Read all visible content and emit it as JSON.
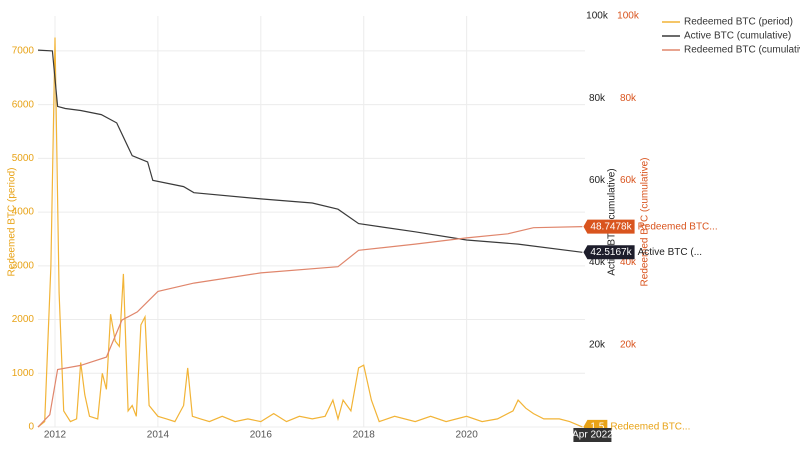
{
  "chart_data": {
    "type": "line",
    "xlim": [
      2011.67,
      2022.3
    ],
    "xticks": [
      2012,
      2014,
      2016,
      2018,
      2020
    ],
    "ylim": [
      0,
      7650
    ],
    "yticks": [
      0,
      1000,
      2000,
      3000,
      4000,
      5000,
      6000,
      7000
    ],
    "y2lim": [
      0,
      100000
    ],
    "y2ticks": [
      {
        "value": 20000,
        "label": "20k"
      },
      {
        "value": 40000,
        "label": "40k"
      },
      {
        "value": 60000,
        "label": "60k"
      },
      {
        "value": 80000,
        "label": "80k"
      },
      {
        "value": 100000,
        "label": "100k"
      }
    ],
    "y3lim": [
      0,
      100000
    ],
    "y3ticks": [
      {
        "value": 20000,
        "label": "20k"
      },
      {
        "value": 40000,
        "label": "40k"
      },
      {
        "value": 60000,
        "label": "60k"
      },
      {
        "value": 80000,
        "label": "80k"
      },
      {
        "value": 100000,
        "label": "100k"
      }
    ],
    "ylabel": "Redeemed BTC (period)",
    "y2label": "Active BTC (cumulative)",
    "y3label": "Redeemed BTC (cumulative)",
    "grid": true,
    "legend": "top-right",
    "series": [
      {
        "name": "Redeemed BTC (period)",
        "color": "#f2b437",
        "axis": "y",
        "x": [
          2011.67,
          2011.8,
          2011.92,
          2012.0,
          2012.08,
          2012.17,
          2012.3,
          2012.42,
          2012.5,
          2012.58,
          2012.67,
          2012.83,
          2012.92,
          2013.0,
          2013.08,
          2013.17,
          2013.25,
          2013.33,
          2013.42,
          2013.5,
          2013.58,
          2013.67,
          2013.75,
          2013.83,
          2014.0,
          2014.17,
          2014.33,
          2014.5,
          2014.58,
          2014.67,
          2014.83,
          2015.0,
          2015.25,
          2015.5,
          2015.75,
          2016.0,
          2016.25,
          2016.5,
          2016.75,
          2017.0,
          2017.25,
          2017.4,
          2017.5,
          2017.6,
          2017.75,
          2017.9,
          2018.0,
          2018.15,
          2018.3,
          2018.6,
          2019.0,
          2019.3,
          2019.6,
          2020.0,
          2020.3,
          2020.6,
          2020.9,
          2021.0,
          2021.15,
          2021.3,
          2021.5,
          2021.8,
          2022.0,
          2022.25
        ],
        "values": [
          0,
          100,
          3000,
          7250,
          2500,
          300,
          100,
          150,
          1200,
          600,
          200,
          150,
          1000,
          700,
          2100,
          1600,
          1500,
          2850,
          300,
          400,
          200,
          1900,
          2050,
          400,
          200,
          150,
          100,
          400,
          1100,
          200,
          150,
          100,
          200,
          100,
          150,
          100,
          250,
          100,
          200,
          150,
          200,
          500,
          150,
          500,
          300,
          1100,
          1150,
          500,
          100,
          200,
          100,
          200,
          100,
          200,
          100,
          150,
          300,
          500,
          350,
          250,
          150,
          150,
          100,
          1.5
        ]
      },
      {
        "name": "Active BTC (cumulative)",
        "color": "#3a3a3a",
        "axis": "y2",
        "x": [
          2011.67,
          2011.95,
          2012.05,
          2012.2,
          2012.5,
          2012.9,
          2013.2,
          2013.5,
          2013.8,
          2013.9,
          2014.5,
          2014.7,
          2016.0,
          2017.0,
          2017.5,
          2017.9,
          2019.0,
          2020.0,
          2021.0,
          2022.25
        ],
        "values": [
          91700,
          91500,
          78000,
          77500,
          77000,
          76000,
          74000,
          66000,
          64500,
          60000,
          58500,
          57000,
          55500,
          54500,
          53000,
          49500,
          47500,
          45500,
          44500,
          42516.7
        ]
      },
      {
        "name": "Redeemed BTC (cumulative)",
        "color": "#e0866c",
        "axis": "y3",
        "x": [
          2011.67,
          2011.9,
          2012.05,
          2012.5,
          2013.0,
          2013.3,
          2013.6,
          2014.0,
          2014.7,
          2016.0,
          2017.5,
          2017.9,
          2019.0,
          2020.0,
          2020.8,
          2021.3,
          2022.25
        ],
        "values": [
          0,
          3000,
          14000,
          15000,
          17000,
          26000,
          28000,
          33000,
          35000,
          37500,
          39000,
          43000,
          44500,
          46000,
          47000,
          48500,
          48747.8
        ]
      }
    ],
    "hover": [
      {
        "label": "1.5",
        "name": "Redeemed BTC..."
      },
      {
        "label": "42.5167k",
        "name": "Active BTC (..."
      },
      {
        "label": "48.7478k",
        "name": "Redeemed BTC..."
      }
    ],
    "hover_x": "Apr 2022"
  }
}
